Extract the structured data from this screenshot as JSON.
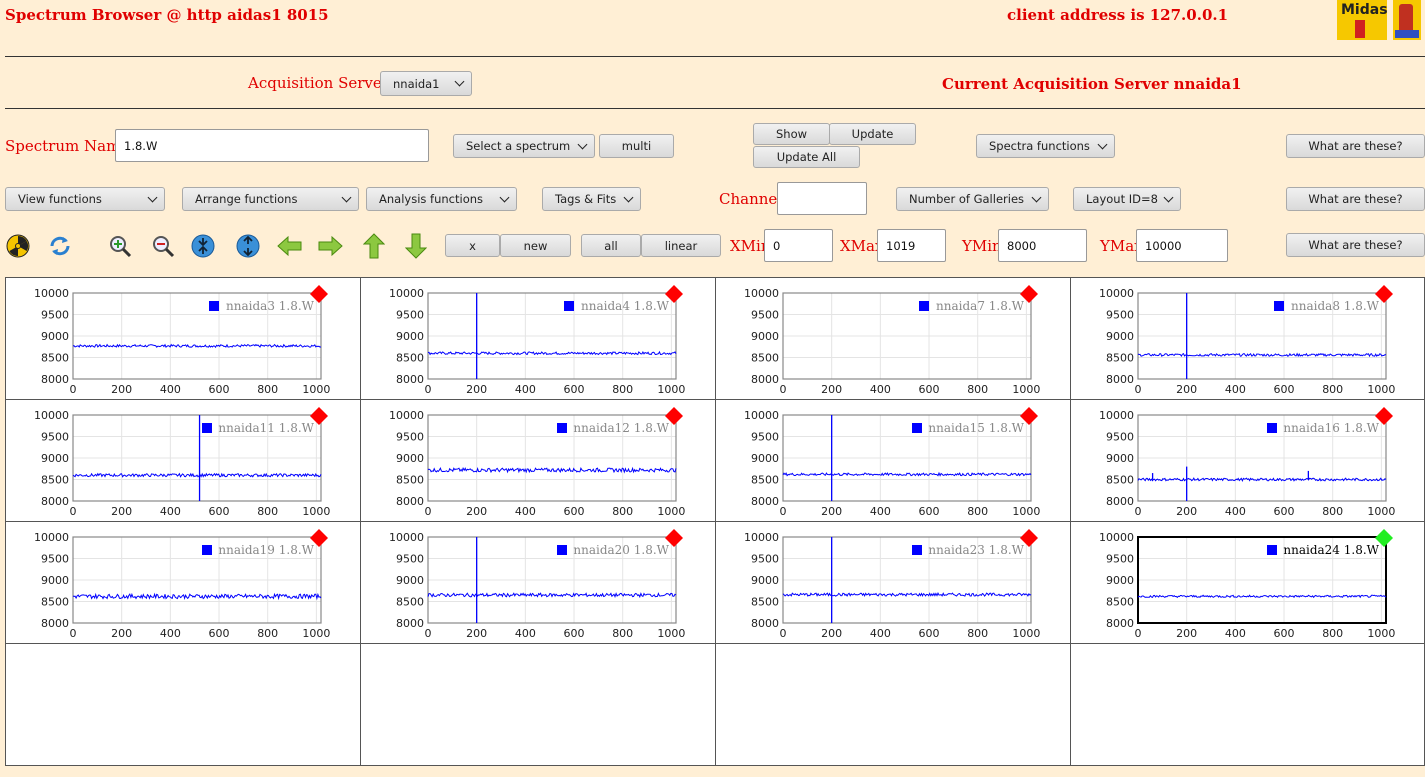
{
  "header": {
    "title": "Spectrum Browser @ http aidas1 8015",
    "client_address": "client address is 127.0.0.1",
    "logo_text": "Midas"
  },
  "acquisition": {
    "label": "Acquisition Servers",
    "selected": "nnaida1",
    "current": "Current Acquisition Server nnaida1"
  },
  "spectrum": {
    "name_label": "Spectrum Name:",
    "name_value": "1.8.W",
    "select_label": "Select a spectrum",
    "multi_label": "multi",
    "show_label": "Show",
    "update_label": "Update",
    "update_all_label": "Update All",
    "spectra_functions_label": "Spectra functions",
    "what_label": "What are these?"
  },
  "functions_row": {
    "view_label": "View functions",
    "arrange_label": "Arrange functions",
    "analysis_label": "Analysis functions",
    "tags_label": "Tags & Fits",
    "channel_label": "Channel:",
    "channel_value": "",
    "galleries_label": "Number of Galleries",
    "layout_label": "Layout ID=8",
    "what_label": "What are these?"
  },
  "toolbar": {
    "x_label": "x",
    "new_label": "new",
    "all_label": "all",
    "linear_label": "linear",
    "xmin_label": "XMin",
    "xmin_value": "0",
    "xmax_label": "XMax",
    "xmax_value": "1019",
    "ymin_label": "YMin",
    "ymin_value": "8000",
    "ymax_label": "YMax",
    "ymax_value": "10000",
    "what_label": "What are these?",
    "icons": [
      "radiation-icon",
      "refresh-icon",
      "zoom-in-icon",
      "zoom-out-icon",
      "compress-vertical-icon",
      "expand-vertical-icon",
      "arrow-left-icon",
      "arrow-right-icon",
      "arrow-up-icon",
      "arrow-down-icon"
    ]
  },
  "colors": {
    "background": "#ffefd5",
    "label_red": "#e00000",
    "trace_blue": "#0000ff",
    "marker_red": "#ff0000",
    "marker_green": "#22ee22"
  },
  "chart_data": {
    "type": "line",
    "x_ticks": [
      "0",
      "200",
      "400",
      "600",
      "800",
      "1000"
    ],
    "y_ticks": [
      "10000",
      "9500",
      "9000",
      "8500",
      "8000"
    ],
    "xlim": [
      0,
      1019
    ],
    "ylim": [
      8000,
      10000
    ],
    "panels": [
      {
        "legend": "nnaida3 1.8.W",
        "baseline": 8770,
        "noise": 30,
        "spikes": [],
        "active": false
      },
      {
        "legend": "nnaida4 1.8.W",
        "baseline": 8600,
        "noise": 30,
        "spikes": [
          {
            "x": 200,
            "top": 10000,
            "bottom": 8000
          }
        ],
        "active": false
      },
      {
        "legend": "nnaida7 1.8.W",
        "baseline": null,
        "noise": 0,
        "spikes": [],
        "active": false
      },
      {
        "legend": "nnaida8 1.8.W",
        "baseline": 8560,
        "noise": 30,
        "spikes": [
          {
            "x": 200,
            "top": 10000,
            "bottom": 8000
          }
        ],
        "active": false
      },
      {
        "legend": "nnaida11 1.8.W",
        "baseline": 8600,
        "noise": 35,
        "spikes": [
          {
            "x": 520,
            "top": 10000,
            "bottom": 8000
          }
        ],
        "active": false
      },
      {
        "legend": "nnaida12 1.8.W",
        "baseline": 8720,
        "noise": 45,
        "spikes": [],
        "active": false
      },
      {
        "legend": "nnaida15 1.8.W",
        "baseline": 8620,
        "noise": 30,
        "spikes": [
          {
            "x": 200,
            "top": 10000,
            "bottom": 8000
          }
        ],
        "active": false
      },
      {
        "legend": "nnaida16 1.8.W",
        "baseline": 8500,
        "noise": 30,
        "spikes": [
          {
            "x": 200,
            "top": 8800,
            "bottom": 8000
          },
          {
            "x": 60,
            "top": 8650,
            "bottom": 8500
          },
          {
            "x": 700,
            "top": 8700,
            "bottom": 8500
          }
        ],
        "active": false
      },
      {
        "legend": "nnaida19 1.8.W",
        "baseline": 8620,
        "noise": 50,
        "spikes": [],
        "active": false
      },
      {
        "legend": "nnaida20 1.8.W",
        "baseline": 8650,
        "noise": 40,
        "spikes": [
          {
            "x": 200,
            "top": 10000,
            "bottom": 8000
          }
        ],
        "active": false
      },
      {
        "legend": "nnaida23 1.8.W",
        "baseline": 8660,
        "noise": 35,
        "spikes": [
          {
            "x": 200,
            "top": 10000,
            "bottom": 8000
          }
        ],
        "active": false
      },
      {
        "legend": "nnaida24 1.8.W",
        "baseline": 8620,
        "noise": 25,
        "spikes": [],
        "active": true
      }
    ],
    "empty_cells": 4
  }
}
